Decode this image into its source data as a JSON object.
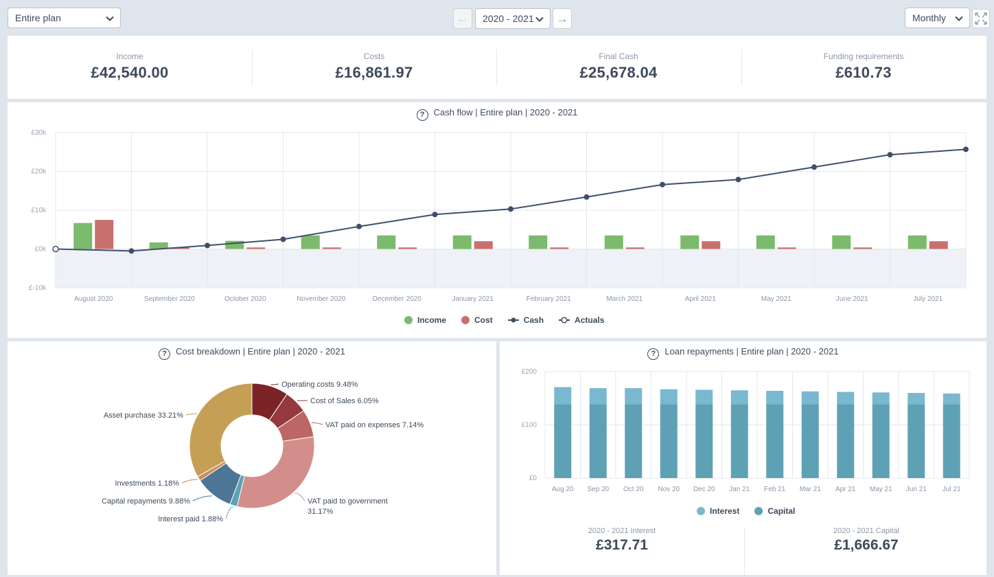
{
  "controls": {
    "scope_select": "Entire plan",
    "year_select": "2020 - 2021",
    "period_select": "Monthly",
    "prev_arrow": "←",
    "next_arrow": "→"
  },
  "kpis": [
    {
      "label": "Income",
      "value": "£42,540.00"
    },
    {
      "label": "Costs",
      "value": "£16,861.97"
    },
    {
      "label": "Final Cash",
      "value": "£25,678.04"
    },
    {
      "label": "Funding requirements",
      "value": "£610.73"
    }
  ],
  "help_glyph": "?",
  "cashflow": {
    "title": "Cash flow | Entire plan | 2020 - 2021",
    "legend": [
      "Income",
      "Cost",
      "Cash",
      "Actuals"
    ]
  },
  "cost_breakdown": {
    "title": "Cost breakdown | Entire plan | 2020 - 2021"
  },
  "loans": {
    "title": "Loan repayments | Entire plan | 2020 - 2021",
    "legend": [
      "Interest",
      "Capital"
    ],
    "summary": [
      {
        "label": "2020 - 2021 Interest",
        "value": "£317.71"
      },
      {
        "label": "2020 - 2021 Capital",
        "value": "£1,666.67"
      }
    ]
  },
  "colors": {
    "income": "#7cba6d",
    "cost": "#c8706f",
    "cash": "#3f4f6b",
    "interest": "#7ab8cf",
    "capital": "#5ea1b4"
  },
  "chart_data": [
    {
      "type": "bar",
      "title": "Cash flow | Entire plan | 2020 - 2021",
      "categories": [
        "August 2020",
        "September 2020",
        "October 2020",
        "November 2020",
        "December 2020",
        "January 2021",
        "February 2021",
        "March 2021",
        "April 2021",
        "May 2021",
        "June 2021",
        "July 2021"
      ],
      "ylim": [
        -10000,
        30000
      ],
      "yticks": [
        "£-10k",
        "£0k",
        "£10k",
        "£20k",
        "£30k"
      ],
      "ytick_values": [
        -10000,
        0,
        10000,
        20000,
        30000
      ],
      "grid": true,
      "legend_position": "bottom",
      "series": [
        {
          "name": "Income",
          "kind": "bar",
          "values": [
            6700,
            1700,
            2100,
            3500,
            3500,
            3500,
            3500,
            3500,
            3500,
            3500,
            3500,
            3500
          ]
        },
        {
          "name": "Cost",
          "kind": "bar",
          "values": [
            7500,
            400,
            400,
            400,
            400,
            2000,
            400,
            400,
            2000,
            400,
            400,
            2000
          ]
        },
        {
          "name": "Cash",
          "kind": "line",
          "opening": 0,
          "values": [
            -500,
            900,
            2500,
            5800,
            8900,
            10300,
            13400,
            16600,
            17900,
            21100,
            24300,
            25678
          ]
        }
      ]
    },
    {
      "type": "pie",
      "title": "Cost breakdown | Entire plan | 2020 - 2021",
      "slices": [
        {
          "label": "Operating costs",
          "pct": "9.48%",
          "value": 9.48,
          "color": "#7a2426"
        },
        {
          "label": "Cost of Sales",
          "pct": "6.05%",
          "value": 6.05,
          "color": "#95393e"
        },
        {
          "label": "VAT paid on expenses",
          "pct": "7.14%",
          "value": 7.14,
          "color": "#bc6665"
        },
        {
          "label": "VAT paid to government",
          "pct": "31.17%",
          "value": 31.17,
          "color": "#d38e8c"
        },
        {
          "label": "Interest paid",
          "pct": "1.88%",
          "value": 1.88,
          "color": "#5ea1b4"
        },
        {
          "label": "Capital repayments",
          "pct": "9.88%",
          "value": 9.88,
          "color": "#4d7696"
        },
        {
          "label": "Investments",
          "pct": "1.18%",
          "value": 1.18,
          "color": "#c88b5a"
        },
        {
          "label": "Asset purchase",
          "pct": "33.21%",
          "value": 33.21,
          "color": "#c59f56"
        }
      ]
    },
    {
      "type": "bar",
      "stacked": true,
      "title": "Loan repayments | Entire plan | 2020 - 2021",
      "categories": [
        "Aug 20",
        "Sep 20",
        "Oct 20",
        "Nov 20",
        "Dec 20",
        "Jan 21",
        "Feb 21",
        "Mar 21",
        "Apr 21",
        "May 21",
        "Jun 21",
        "Jul 21"
      ],
      "ylim": [
        0,
        200
      ],
      "yticks": [
        "£0",
        "£100",
        "£200"
      ],
      "ytick_values": [
        0,
        100,
        200
      ],
      "grid": true,
      "legend_position": "bottom",
      "series": [
        {
          "name": "Capital",
          "values": [
            138.89,
            138.89,
            138.89,
            138.89,
            138.89,
            138.89,
            138.89,
            138.89,
            138.89,
            138.89,
            138.89,
            138.89
          ]
        },
        {
          "name": "Interest",
          "values": [
            32,
            30,
            30,
            28,
            27,
            26,
            25,
            24,
            23,
            22,
            21,
            20
          ]
        }
      ]
    }
  ]
}
